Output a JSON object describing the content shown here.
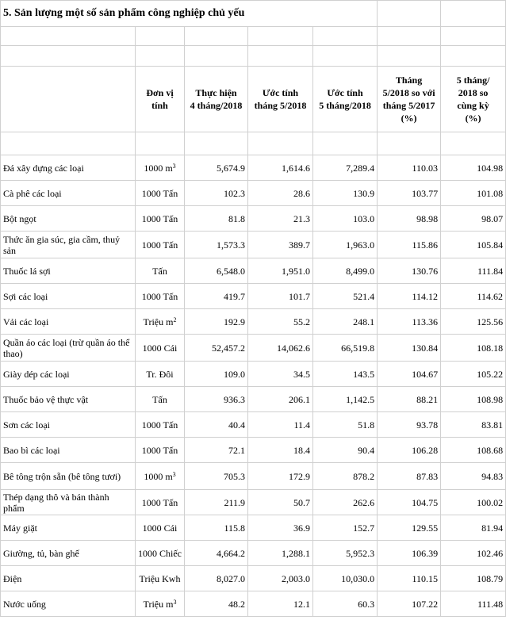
{
  "title": "5. Sản lượng một số sản phẩm công nghiệp chủ yếu",
  "headers": {
    "unit": [
      "Đơn vị",
      "tính"
    ],
    "h1": [
      "Thực hiện",
      "4 tháng/2018"
    ],
    "h2": [
      "Ước tính",
      "tháng 5/2018"
    ],
    "h3": [
      "Ước tính",
      "5 tháng/2018"
    ],
    "h4": [
      "Tháng",
      "5/2018 so với",
      "tháng 5/2017",
      "(%)"
    ],
    "h5": [
      "5 tháng/",
      "2018 so",
      "cùng kỳ",
      "(%)"
    ]
  },
  "rows": [
    {
      "name": "Đá xây dựng các loại",
      "unit": "1000 m",
      "sup": "3",
      "v1": "5,674.9",
      "v2": "1,614.6",
      "v3": "7,289.4",
      "v4": "110.03",
      "v5": "104.98"
    },
    {
      "name": "Cà phê các loại",
      "unit": "1000 Tấn",
      "sup": "",
      "v1": "102.3",
      "v2": "28.6",
      "v3": "130.9",
      "v4": "103.77",
      "v5": "101.08"
    },
    {
      "name": "Bột ngọt",
      "unit": "1000 Tấn",
      "sup": "",
      "v1": "81.8",
      "v2": "21.3",
      "v3": "103.0",
      "v4": "98.98",
      "v5": "98.07"
    },
    {
      "name": "Thức ăn gia súc, gia cầm, thuỷ sản",
      "unit": "1000 Tấn",
      "sup": "",
      "v1": "1,573.3",
      "v2": "389.7",
      "v3": "1,963.0",
      "v4": "115.86",
      "v5": "105.84"
    },
    {
      "name": "Thuốc lá sợi",
      "unit": "Tấn",
      "sup": "",
      "v1": "6,548.0",
      "v2": "1,951.0",
      "v3": "8,499.0",
      "v4": "130.76",
      "v5": "111.84"
    },
    {
      "name": "Sợi các loại",
      "unit": "1000 Tấn",
      "sup": "",
      "v1": "419.7",
      "v2": "101.7",
      "v3": "521.4",
      "v4": "114.12",
      "v5": "114.62"
    },
    {
      "name": "Vải các loại",
      "unit": "Triệu m",
      "sup": "2",
      "v1": "192.9",
      "v2": "55.2",
      "v3": "248.1",
      "v4": "113.36",
      "v5": "125.56"
    },
    {
      "name": "Quần áo các loại (trừ quần áo thể thao)",
      "unit": "1000 Cái",
      "sup": "",
      "v1": "52,457.2",
      "v2": "14,062.6",
      "v3": "66,519.8",
      "v4": "130.84",
      "v5": "108.18"
    },
    {
      "name": "Giày dép các loại",
      "unit": "Tr. Đôi",
      "sup": "",
      "v1": "109.0",
      "v2": "34.5",
      "v3": "143.5",
      "v4": "104.67",
      "v5": "105.22"
    },
    {
      "name": "Thuốc bảo vệ thực vật",
      "unit": "Tấn",
      "sup": "",
      "v1": "936.3",
      "v2": "206.1",
      "v3": "1,142.5",
      "v4": "88.21",
      "v5": "108.98"
    },
    {
      "name": "Sơn các loại",
      "unit": "1000 Tấn",
      "sup": "",
      "v1": "40.4",
      "v2": "11.4",
      "v3": "51.8",
      "v4": "93.78",
      "v5": "83.81"
    },
    {
      "name": "Bao bì các loại",
      "unit": "1000 Tấn",
      "sup": "",
      "v1": "72.1",
      "v2": "18.4",
      "v3": "90.4",
      "v4": "106.28",
      "v5": "108.68"
    },
    {
      "name": "Bê tông trộn sẵn (bê tông tươi)",
      "unit": "1000 m",
      "sup": "3",
      "v1": "705.3",
      "v2": "172.9",
      "v3": "878.2",
      "v4": "87.83",
      "v5": "94.83"
    },
    {
      "name": "Thép dạng thô và bán thành phẩm",
      "unit": "1000 Tấn",
      "sup": "",
      "v1": "211.9",
      "v2": "50.7",
      "v3": "262.6",
      "v4": "104.75",
      "v5": "100.02"
    },
    {
      "name": "Máy giặt",
      "unit": "1000 Cái",
      "sup": "",
      "v1": "115.8",
      "v2": "36.9",
      "v3": "152.7",
      "v4": "129.55",
      "v5": "81.94"
    },
    {
      "name": "Giường, tủ, bàn ghế",
      "unit": "1000 Chiếc",
      "sup": "",
      "v1": "4,664.2",
      "v2": "1,288.1",
      "v3": "5,952.3",
      "v4": "106.39",
      "v5": "102.46"
    },
    {
      "name": "Điện",
      "unit": "Triệu Kwh",
      "sup": "",
      "v1": "8,027.0",
      "v2": "2,003.0",
      "v3": "10,030.0",
      "v4": "110.15",
      "v5": "108.79"
    },
    {
      "name": "Nước uống",
      "unit": "Triệu m",
      "sup": "3",
      "v1": "48.2",
      "v2": "12.1",
      "v3": "60.3",
      "v4": "107.22",
      "v5": "111.48"
    }
  ]
}
